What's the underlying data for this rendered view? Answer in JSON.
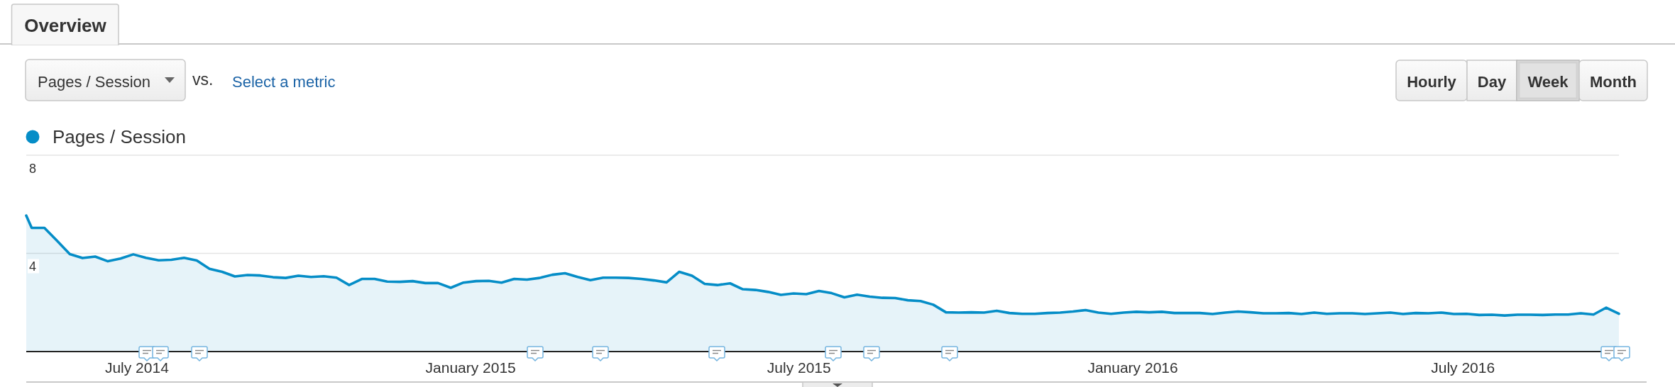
{
  "chart_data": {
    "type": "area",
    "title": "Overview",
    "annotations": [
      "Pages / Session",
      "vs.",
      "Select a metric",
      "Hourly",
      "Day",
      "Week",
      "Month"
    ],
    "x": [
      "2014-05-01",
      "2014-05-04",
      "2014-05-11",
      "2014-05-18",
      "2014-05-25",
      "2014-06-01",
      "2014-06-08",
      "2014-06-15",
      "2014-06-22",
      "2014-06-29",
      "2014-07-06",
      "2014-07-13",
      "2014-07-20",
      "2014-07-27",
      "2014-08-03",
      "2014-08-10",
      "2014-08-17",
      "2014-08-24",
      "2014-08-31",
      "2014-09-07",
      "2014-09-14",
      "2014-09-21",
      "2014-09-28",
      "2014-10-05",
      "2014-10-12",
      "2014-10-19",
      "2014-10-26",
      "2014-11-02",
      "2014-11-09",
      "2014-11-16",
      "2014-11-23",
      "2014-11-30",
      "2014-12-07",
      "2014-12-14",
      "2014-12-21",
      "2014-12-28",
      "2015-01-04",
      "2015-01-11",
      "2015-01-18",
      "2015-01-25",
      "2015-02-01",
      "2015-02-08",
      "2015-02-15",
      "2015-02-22",
      "2015-03-01",
      "2015-03-08",
      "2015-03-15",
      "2015-03-22",
      "2015-03-29",
      "2015-04-05",
      "2015-04-12",
      "2015-04-19",
      "2015-04-26",
      "2015-05-03",
      "2015-05-10",
      "2015-05-17",
      "2015-05-24",
      "2015-05-31",
      "2015-06-07",
      "2015-06-14",
      "2015-06-21",
      "2015-06-28",
      "2015-07-05",
      "2015-07-12",
      "2015-07-19",
      "2015-07-26",
      "2015-08-02",
      "2015-08-09",
      "2015-08-16",
      "2015-08-23",
      "2015-08-30",
      "2015-09-06",
      "2015-09-13",
      "2015-09-20",
      "2015-09-27",
      "2015-10-04",
      "2015-10-11",
      "2015-10-18",
      "2015-10-25",
      "2015-11-01",
      "2015-11-08",
      "2015-11-15",
      "2015-11-22",
      "2015-11-29",
      "2015-12-06",
      "2015-12-13",
      "2015-12-20",
      "2015-12-27",
      "2016-01-03",
      "2016-01-10",
      "2016-01-17",
      "2016-01-24",
      "2016-01-31",
      "2016-02-07",
      "2016-02-14",
      "2016-02-21",
      "2016-02-28",
      "2016-03-06",
      "2016-03-13",
      "2016-03-20",
      "2016-03-27",
      "2016-04-03",
      "2016-04-10",
      "2016-04-17",
      "2016-04-24",
      "2016-05-01",
      "2016-05-08",
      "2016-05-15",
      "2016-05-22",
      "2016-05-29",
      "2016-06-05",
      "2016-06-12",
      "2016-06-19",
      "2016-06-26",
      "2016-07-03",
      "2016-07-10",
      "2016-07-17",
      "2016-07-24",
      "2016-07-31",
      "2016-08-07",
      "2016-08-14",
      "2016-08-21",
      "2016-08-28",
      "2016-09-04",
      "2016-09-11",
      "2016-09-18",
      "2016-09-25"
    ],
    "series": [
      {
        "name": "Pages / Session",
        "color": "#058dc7",
        "values": [
          5.54,
          5.04,
          5.04,
          4.51,
          3.97,
          3.81,
          3.87,
          3.68,
          3.79,
          3.96,
          3.82,
          3.72,
          3.74,
          3.82,
          3.71,
          3.37,
          3.25,
          3.06,
          3.12,
          3.1,
          3.03,
          3.0,
          3.09,
          3.04,
          3.07,
          3.01,
          2.71,
          2.96,
          2.96,
          2.85,
          2.84,
          2.87,
          2.79,
          2.79,
          2.6,
          2.81,
          2.87,
          2.88,
          2.81,
          2.96,
          2.93,
          3.0,
          3.13,
          3.19,
          3.04,
          2.91,
          3.01,
          3.01,
          3.0,
          2.96,
          2.9,
          2.82,
          3.25,
          3.09,
          2.76,
          2.71,
          2.78,
          2.54,
          2.51,
          2.43,
          2.31,
          2.37,
          2.34,
          2.47,
          2.38,
          2.21,
          2.32,
          2.24,
          2.19,
          2.18,
          2.09,
          2.06,
          1.91,
          1.6,
          1.59,
          1.6,
          1.59,
          1.66,
          1.57,
          1.54,
          1.54,
          1.57,
          1.59,
          1.63,
          1.69,
          1.59,
          1.54,
          1.59,
          1.62,
          1.6,
          1.62,
          1.57,
          1.57,
          1.57,
          1.53,
          1.59,
          1.63,
          1.6,
          1.56,
          1.56,
          1.57,
          1.53,
          1.59,
          1.54,
          1.56,
          1.56,
          1.53,
          1.56,
          1.59,
          1.53,
          1.57,
          1.56,
          1.59,
          1.53,
          1.54,
          1.49,
          1.5,
          1.47,
          1.5,
          1.5,
          1.49,
          1.51,
          1.51,
          1.56,
          1.51,
          1.79,
          1.54
        ]
      }
    ],
    "xlim": [
      "2014-05-01",
      "2016-09-25"
    ],
    "xticks": [
      {
        "value": "2014-07-01",
        "label": "July 2014"
      },
      {
        "value": "2015-01-01",
        "label": "January 2015"
      },
      {
        "value": "2015-07-01",
        "label": "July 2015"
      },
      {
        "value": "2016-01-01",
        "label": "January 2016"
      },
      {
        "value": "2016-07-01",
        "label": "July 2016"
      }
    ],
    "ylim": [
      0,
      8
    ],
    "yticks": [
      4,
      8
    ],
    "grid": "y",
    "legend": "top left"
  }
}
